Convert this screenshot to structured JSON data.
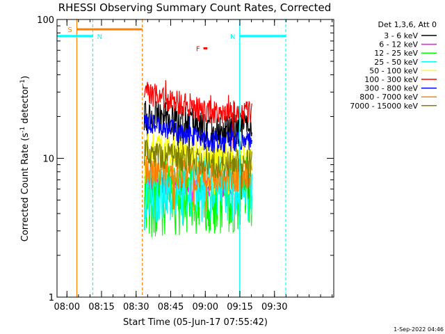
{
  "chart_data": {
    "type": "line",
    "title": "RHESSI Observing Summary Count Rates, Corrected",
    "xlabel": "Start Time (05-Jun-17 07:55:42)",
    "ylabel": "Corrected Count Rate (s",
    "ylabel_sup": "-1",
    "ylabel_mid": " detector",
    "ylabel_end": ")",
    "y_scale": "log",
    "ylim": [
      1,
      100
    ],
    "xlim_minutes": [
      0,
      120
    ],
    "y_ticks": [
      {
        "value": 1,
        "label": "1"
      },
      {
        "value": 10,
        "label": "10"
      },
      {
        "value": 100,
        "label": "100"
      }
    ],
    "x_ticks": [
      {
        "minute": 4.3,
        "label": "08:00"
      },
      {
        "minute": 19.3,
        "label": "08:15"
      },
      {
        "minute": 34.3,
        "label": "08:30"
      },
      {
        "minute": 49.3,
        "label": "08:45"
      },
      {
        "minute": 64.3,
        "label": "09:00"
      },
      {
        "minute": 79.3,
        "label": "09:15"
      },
      {
        "minute": 94.3,
        "label": "09:30"
      }
    ],
    "legend_header": "Det 1,3,6, Att 0",
    "legend_placement": "right",
    "series": [
      {
        "name": "3 - 6 keV",
        "color": "#000000",
        "base": 21,
        "end": 16,
        "noise": 0.12
      },
      {
        "name": "6 - 12 keV",
        "color": "#ff00ff",
        "base": 6.5,
        "end": 6.2,
        "noise": 0.08
      },
      {
        "name": "12 - 25 keV",
        "color": "#00ff00",
        "base": 5.0,
        "end": 5.5,
        "noise": 0.28
      },
      {
        "name": "25 - 50 keV",
        "color": "#00ffff",
        "base": 5.5,
        "end": 6.5,
        "noise": 0.22
      },
      {
        "name": "50 - 100 keV",
        "color": "#ffff00",
        "base": 12,
        "end": 10,
        "noise": 0.12
      },
      {
        "name": "100 - 300 keV",
        "color": "#ff0000",
        "base": 30,
        "end": 21,
        "noise": 0.09
      },
      {
        "name": "300 - 800 keV",
        "color": "#0000ff",
        "base": 18,
        "end": 13,
        "noise": 0.08
      },
      {
        "name": "800 - 7000 keV",
        "color": "#ff8000",
        "base": 8,
        "end": 7.5,
        "noise": 0.12
      },
      {
        "name": "7000 - 15000 keV",
        "color": "#808000",
        "base": 11,
        "end": 9,
        "noise": 0.1
      }
    ],
    "data_window_minutes": [
      37.8,
      84.5
    ],
    "bars": [
      {
        "label": "S",
        "color": "#ff8000",
        "value": 85,
        "x0": 8.6,
        "x1": 37.0
      },
      {
        "label": "N",
        "color": "#00ffff",
        "value": 76,
        "x0": 0,
        "x1": 15.5
      },
      {
        "label": "N",
        "color": "#00ffff",
        "value": 76,
        "x0": 79.2,
        "x1": 99.2
      },
      {
        "label": "F",
        "color": "#ff0000",
        "value": 62,
        "x0": 63.5,
        "x1": 65.2
      }
    ],
    "vertical_lines": [
      {
        "minute": 8.6,
        "color": "#ff8000",
        "style": "solid"
      },
      {
        "minute": 15.5,
        "color": "#00ffff",
        "style": "dashed"
      },
      {
        "minute": 37.0,
        "color": "#ff8000",
        "style": "dashed"
      },
      {
        "minute": 79.2,
        "color": "#00ffff",
        "style": "solid"
      },
      {
        "minute": 99.2,
        "color": "#00ffff",
        "style": "dashed"
      }
    ]
  },
  "footer": {
    "timestamp": "1-Sep-2022 04:46"
  }
}
